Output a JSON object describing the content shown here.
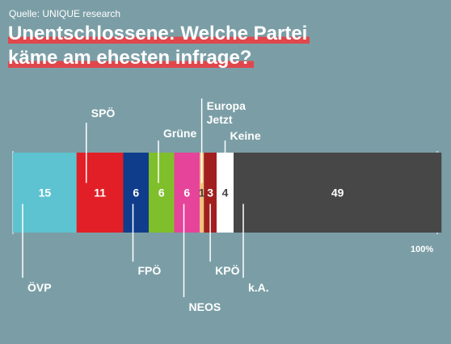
{
  "source": "Quelle: UNIQUE research",
  "title_line1": "Unentschlossene: Welche Partei",
  "title_line2": "käme am ehesten infrage?",
  "total_label": "100%",
  "chart_data": {
    "type": "bar",
    "orientation": "horizontal-stacked",
    "title": "Unentschlossene: Welche Partei käme am ehesten infrage?",
    "source": "Quelle: UNIQUE research",
    "unit": "%",
    "total": 100,
    "segments": [
      {
        "name": "ÖVP",
        "value": 15,
        "value_label": "15",
        "color": "#5ec3d0",
        "text_color": "#ffffff"
      },
      {
        "name": "SPÖ",
        "value": 11,
        "value_label": "11",
        "color": "#e21f26",
        "text_color": "#ffffff"
      },
      {
        "name": "FPÖ",
        "value": 6,
        "value_label": "6",
        "color": "#0f3d8c",
        "text_color": "#ffffff"
      },
      {
        "name": "Grüne",
        "value": 6,
        "value_label": "6",
        "color": "#7fbf2b",
        "text_color": "#ffffff"
      },
      {
        "name": "NEOS",
        "value": 6,
        "value_label": "6",
        "color": "#e6439a",
        "text_color": "#ffffff"
      },
      {
        "name": "Europa Jetzt",
        "value": 1,
        "value_label": "1",
        "color": "#f2c27e",
        "text_color": "#444444"
      },
      {
        "name": "KPÖ",
        "value": 3,
        "value_label": "3",
        "color": "#a1201f",
        "text_color": "#ffffff"
      },
      {
        "name": "Keine",
        "value": 4,
        "value_label": "4",
        "color": "#ffffff",
        "text_color": "#444444"
      },
      {
        "name": "k.A.",
        "value": 49,
        "value_label": "49",
        "color": "#474747",
        "text_color": "#ffffff"
      }
    ]
  }
}
